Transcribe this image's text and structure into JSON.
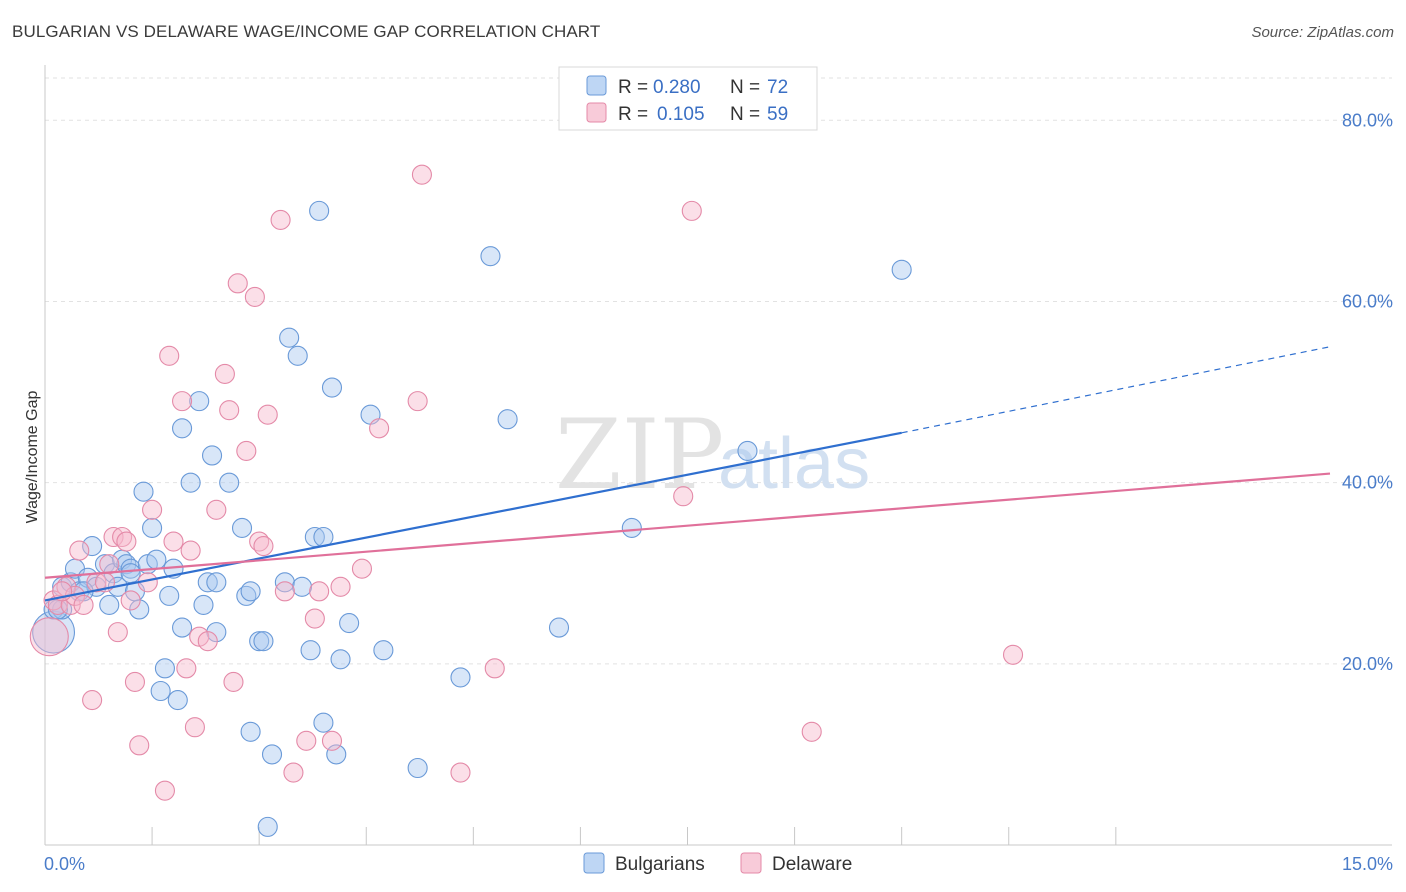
{
  "header": {
    "title": "BULGARIAN VS DELAWARE WAGE/INCOME GAP CORRELATION CHART",
    "source": "Source: ZipAtlas.com"
  },
  "watermark": {
    "zip": "ZIP",
    "atlas": "atlas"
  },
  "chart_data": {
    "type": "scatter",
    "title": "BULGARIAN VS DELAWARE WAGE/INCOME GAP CORRELATION CHART",
    "xlabel": "",
    "ylabel": "Wage/Income Gap",
    "xlim": [
      0,
      15
    ],
    "ylim": [
      0,
      85
    ],
    "x_ticks": [
      0,
      15
    ],
    "x_tick_labels": [
      "0.0%",
      "15.0%"
    ],
    "y_ticks": [
      20,
      40,
      60,
      80
    ],
    "y_tick_labels": [
      "20.0%",
      "40.0%",
      "60.0%",
      "80.0%"
    ],
    "grid": true,
    "legend": {
      "placement": "top-center",
      "entries": [
        {
          "r_label": "R =",
          "r_value": "0.280",
          "n_label": "N =",
          "n_value": "72"
        },
        {
          "r_label": "R =",
          "r_value": "0.105",
          "n_label": "N =",
          "n_value": "59"
        }
      ]
    },
    "bottom_legend": [
      "Bulgarians",
      "Delaware"
    ],
    "colors": {
      "bulgarians_fill": "#a8c8f0",
      "bulgarians_stroke": "#6a9ad8",
      "bulgarians_line": "#2f6fcf",
      "delaware_fill": "#f6b9cc",
      "delaware_stroke": "#e48aa8",
      "delaware_line": "#e0709a",
      "tick_text": "#4a7cc9"
    },
    "series": [
      {
        "name": "Bulgarians",
        "trend": {
          "x0": 0,
          "y0": 27.0,
          "x1": 10.0,
          "y1": 45.5,
          "dash_x1": 15.0,
          "dash_y1": 55.0
        },
        "points": [
          [
            0.1,
            23.5,
            2.2
          ],
          [
            0.1,
            26.0,
            1
          ],
          [
            0.2,
            28.5,
            1
          ],
          [
            0.2,
            26.0,
            1
          ],
          [
            0.3,
            29.0,
            1
          ],
          [
            0.35,
            30.5,
            1
          ],
          [
            0.4,
            28.0,
            1
          ],
          [
            0.5,
            29.5,
            1
          ],
          [
            0.55,
            33.0,
            1
          ],
          [
            0.6,
            28.5,
            1
          ],
          [
            0.7,
            31.0,
            1
          ],
          [
            0.75,
            26.5,
            1
          ],
          [
            0.8,
            30.0,
            1
          ],
          [
            0.85,
            28.5,
            1
          ],
          [
            0.9,
            31.5,
            1
          ],
          [
            0.95,
            31.0,
            1
          ],
          [
            1.0,
            30.5,
            1
          ],
          [
            1.0,
            30.0,
            1
          ],
          [
            1.05,
            28.0,
            1
          ],
          [
            1.1,
            26.0,
            1
          ],
          [
            1.15,
            39.0,
            1
          ],
          [
            1.2,
            31.0,
            1
          ],
          [
            1.25,
            35.0,
            1
          ],
          [
            1.3,
            31.5,
            1
          ],
          [
            1.35,
            17.0,
            1
          ],
          [
            1.4,
            19.5,
            1
          ],
          [
            1.45,
            27.5,
            1
          ],
          [
            1.5,
            30.5,
            1
          ],
          [
            1.55,
            16.0,
            1
          ],
          [
            1.6,
            46.0,
            1
          ],
          [
            1.7,
            40.0,
            1
          ],
          [
            1.8,
            49.0,
            1
          ],
          [
            1.85,
            26.5,
            1
          ],
          [
            1.9,
            29.0,
            1
          ],
          [
            1.95,
            43.0,
            1
          ],
          [
            2.0,
            29.0,
            1
          ],
          [
            2.0,
            23.5,
            1
          ],
          [
            2.15,
            40.0,
            1
          ],
          [
            2.3,
            35.0,
            1
          ],
          [
            2.35,
            27.5,
            1
          ],
          [
            2.4,
            28.0,
            1
          ],
          [
            2.4,
            12.5,
            1
          ],
          [
            2.5,
            22.5,
            1
          ],
          [
            2.55,
            22.5,
            1
          ],
          [
            2.6,
            2.0,
            1
          ],
          [
            2.65,
            10.0,
            1
          ],
          [
            2.8,
            29.0,
            1
          ],
          [
            2.85,
            56.0,
            1
          ],
          [
            2.95,
            54.0,
            1
          ],
          [
            3.0,
            28.5,
            1
          ],
          [
            3.1,
            21.5,
            1
          ],
          [
            3.15,
            34.0,
            1
          ],
          [
            3.2,
            70.0,
            1
          ],
          [
            3.25,
            34.0,
            1
          ],
          [
            3.25,
            13.5,
            1
          ],
          [
            3.35,
            50.5,
            1
          ],
          [
            3.4,
            10.0,
            1
          ],
          [
            3.45,
            20.5,
            1
          ],
          [
            3.55,
            24.5,
            1
          ],
          [
            3.8,
            47.5,
            1
          ],
          [
            3.95,
            21.5,
            1
          ],
          [
            4.35,
            8.5,
            1
          ],
          [
            4.85,
            18.5,
            1
          ],
          [
            5.2,
            65.0,
            1
          ],
          [
            5.4,
            47.0,
            1
          ],
          [
            6.0,
            24.0,
            1
          ],
          [
            6.85,
            35.0,
            1
          ],
          [
            8.2,
            43.5,
            1
          ],
          [
            10.0,
            63.5,
            1
          ],
          [
            0.15,
            26.0,
            1
          ],
          [
            0.45,
            28.0,
            1
          ],
          [
            1.6,
            24.0,
            1
          ]
        ]
      },
      {
        "name": "Delaware",
        "trend": {
          "x0": 0,
          "y0": 29.5,
          "x1": 15.0,
          "y1": 41.0
        },
        "points": [
          [
            0.05,
            23.0,
            2.0
          ],
          [
            0.1,
            27.0,
            1
          ],
          [
            0.15,
            26.5,
            1
          ],
          [
            0.25,
            28.5,
            1
          ],
          [
            0.3,
            26.5,
            1
          ],
          [
            0.35,
            27.5,
            1
          ],
          [
            0.4,
            32.5,
            1
          ],
          [
            0.45,
            26.5,
            1
          ],
          [
            0.55,
            16.0,
            1
          ],
          [
            0.6,
            29.0,
            1
          ],
          [
            0.7,
            29.0,
            1
          ],
          [
            0.75,
            31.0,
            1
          ],
          [
            0.8,
            34.0,
            1
          ],
          [
            0.85,
            23.5,
            1
          ],
          [
            0.9,
            34.0,
            1
          ],
          [
            0.95,
            33.5,
            1
          ],
          [
            1.0,
            27.0,
            1
          ],
          [
            1.05,
            18.0,
            1
          ],
          [
            1.1,
            11.0,
            1
          ],
          [
            1.2,
            29.0,
            1
          ],
          [
            1.25,
            37.0,
            1
          ],
          [
            1.4,
            6.0,
            1
          ],
          [
            1.45,
            54.0,
            1
          ],
          [
            1.5,
            33.5,
            1
          ],
          [
            1.6,
            49.0,
            1
          ],
          [
            1.65,
            19.5,
            1
          ],
          [
            1.7,
            32.5,
            1
          ],
          [
            1.75,
            13.0,
            1
          ],
          [
            1.8,
            23.0,
            1
          ],
          [
            1.9,
            22.5,
            1
          ],
          [
            2.0,
            37.0,
            1
          ],
          [
            2.1,
            52.0,
            1
          ],
          [
            2.15,
            48.0,
            1
          ],
          [
            2.2,
            18.0,
            1
          ],
          [
            2.25,
            62.0,
            1
          ],
          [
            2.35,
            43.5,
            1
          ],
          [
            2.45,
            60.5,
            1
          ],
          [
            2.5,
            33.5,
            1
          ],
          [
            2.55,
            33.0,
            1
          ],
          [
            2.6,
            47.5,
            1
          ],
          [
            2.75,
            69.0,
            1
          ],
          [
            2.8,
            28.0,
            1
          ],
          [
            2.9,
            8.0,
            1
          ],
          [
            3.05,
            11.5,
            1
          ],
          [
            3.15,
            25.0,
            1
          ],
          [
            3.2,
            28.0,
            1
          ],
          [
            3.35,
            11.5,
            1
          ],
          [
            3.45,
            28.5,
            1
          ],
          [
            3.7,
            30.5,
            1
          ],
          [
            3.9,
            46.0,
            1
          ],
          [
            4.35,
            49.0,
            1
          ],
          [
            4.4,
            74.0,
            1
          ],
          [
            4.85,
            8.0,
            1
          ],
          [
            5.25,
            19.5,
            1
          ],
          [
            7.45,
            38.5,
            1
          ],
          [
            7.55,
            70.0,
            1
          ],
          [
            8.95,
            12.5,
            1
          ],
          [
            11.3,
            21.0,
            1
          ],
          [
            0.2,
            28.0,
            1
          ]
        ]
      }
    ]
  }
}
